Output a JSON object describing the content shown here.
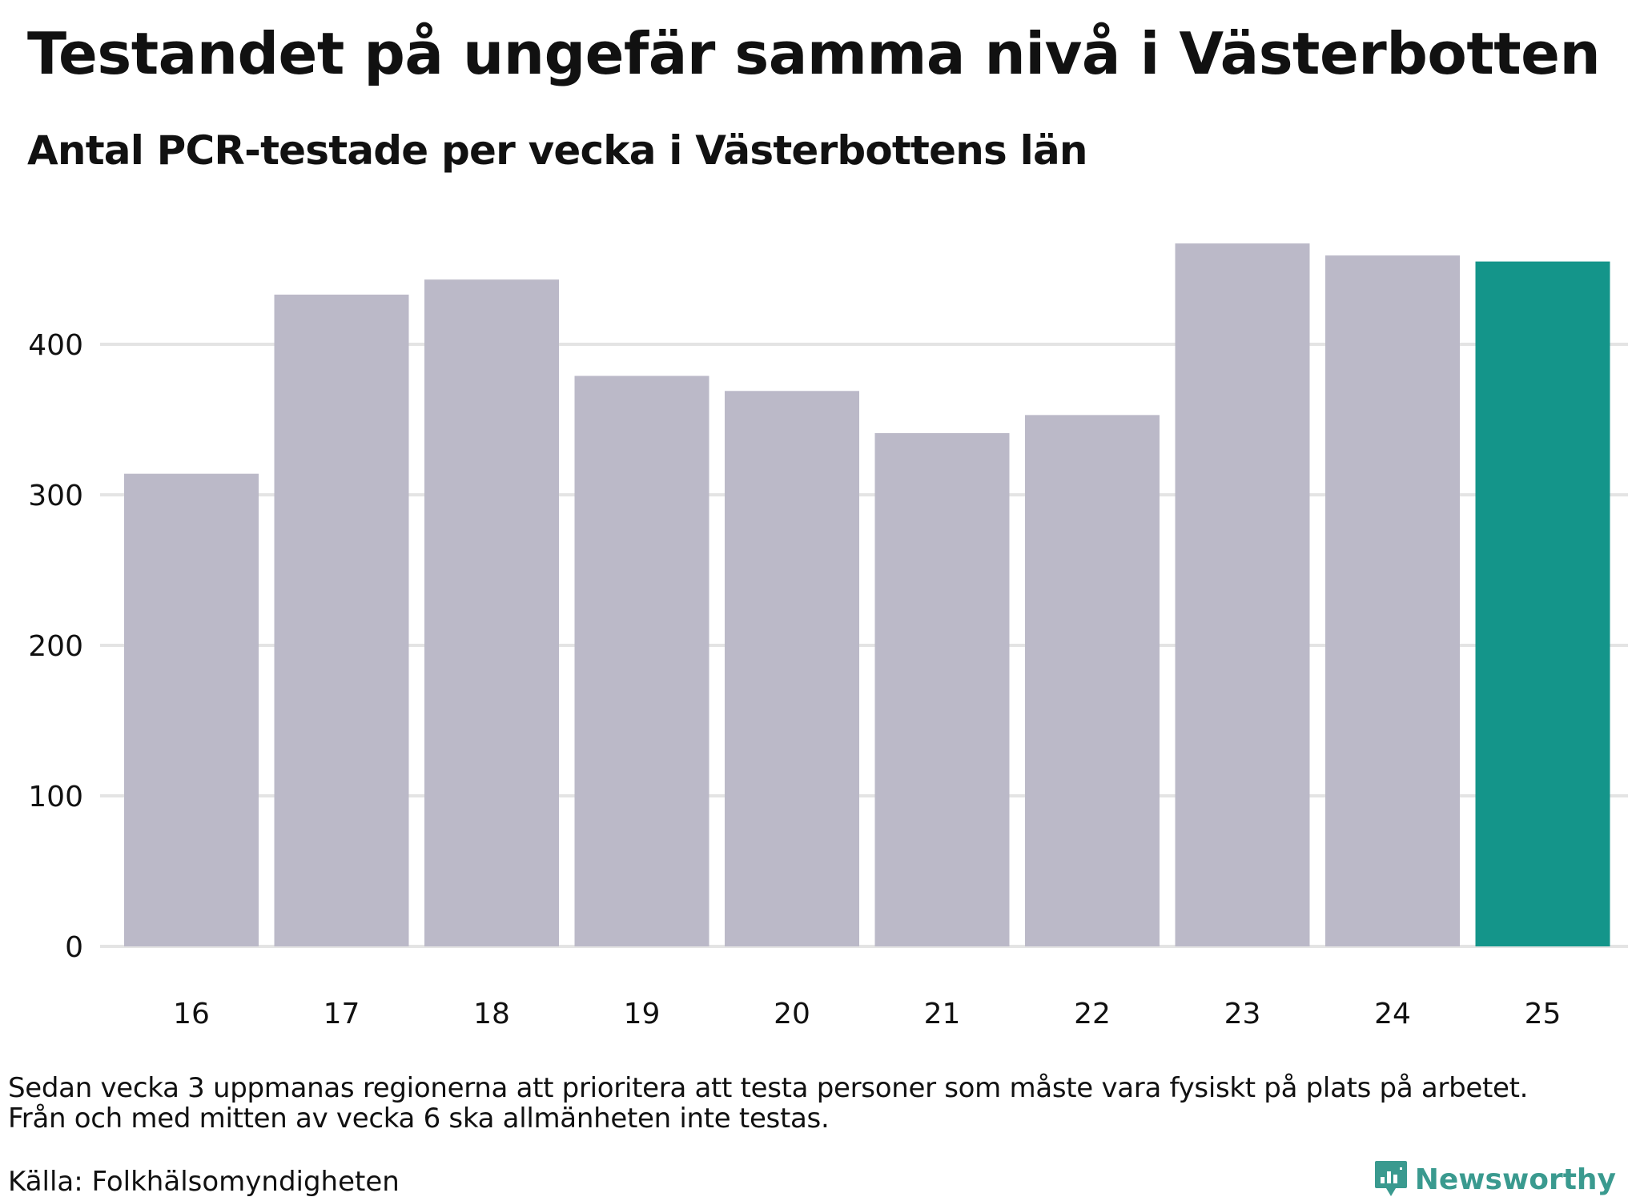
{
  "title": "Testandet på ungefär samma nivå i Västerbotten",
  "subtitle": "Antal PCR-testade per vecka i Västerbottens län",
  "note_lines": [
    "Sedan vecka 3 uppmanas regionerna att prioritera att testa personer som måste vara fysiskt på plats på arbetet.",
    "Från och med mitten av vecka 6 ska allmänheten inte testas."
  ],
  "source": "Källa: Folkhälsomyndigheten",
  "brand": {
    "name": "Newsworthy",
    "icon": "newsworthy-logo-icon",
    "color": "#3a9a8f"
  },
  "chart_data": {
    "type": "bar",
    "categories": [
      "16",
      "17",
      "18",
      "19",
      "20",
      "21",
      "22",
      "23",
      "24",
      "25"
    ],
    "values": [
      314,
      433,
      443,
      379,
      369,
      341,
      353,
      467,
      459,
      455
    ],
    "highlight_index": 9,
    "colors": {
      "bar": "#bbb9c8",
      "highlight": "#14958a",
      "grid": "#e4e4e4"
    },
    "title": "",
    "xlabel": "",
    "ylabel": "",
    "yticks": [
      0,
      100,
      200,
      300,
      400
    ],
    "ylim": [
      0,
      480
    ],
    "grid": true,
    "legend": "none"
  }
}
